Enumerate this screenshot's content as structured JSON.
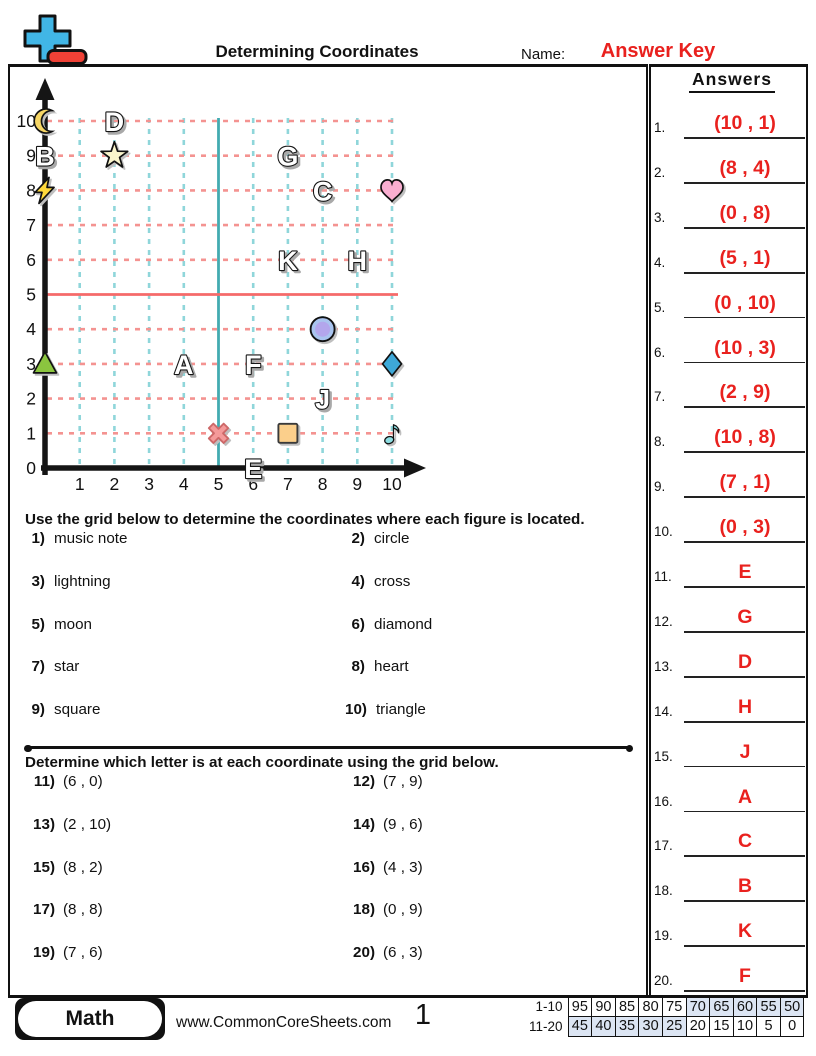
{
  "header": {
    "title": "Determining Coordinates",
    "name_label": "Name:",
    "answer_key": "Answer Key"
  },
  "answers_panel": {
    "heading": "Answers",
    "items": [
      {
        "num": "1.",
        "text": "(10 , 1)"
      },
      {
        "num": "2.",
        "text": "(8 , 4)"
      },
      {
        "num": "3.",
        "text": "(0 , 8)"
      },
      {
        "num": "4.",
        "text": "(5 , 1)"
      },
      {
        "num": "5.",
        "text": "(0 , 10)"
      },
      {
        "num": "6.",
        "text": "(10 , 3)"
      },
      {
        "num": "7.",
        "text": "(2 , 9)"
      },
      {
        "num": "8.",
        "text": "(10 , 8)"
      },
      {
        "num": "9.",
        "text": "(7 , 1)"
      },
      {
        "num": "10.",
        "text": "(0 , 3)"
      },
      {
        "num": "11.",
        "text": "E"
      },
      {
        "num": "12.",
        "text": "G"
      },
      {
        "num": "13.",
        "text": "D"
      },
      {
        "num": "14.",
        "text": "H"
      },
      {
        "num": "15.",
        "text": "J"
      },
      {
        "num": "16.",
        "text": "A"
      },
      {
        "num": "17.",
        "text": "C"
      },
      {
        "num": "18.",
        "text": "B"
      },
      {
        "num": "19.",
        "text": "K"
      },
      {
        "num": "20.",
        "text": "F"
      }
    ]
  },
  "chart_data": {
    "type": "scatter",
    "title": "coordinate grid 0-10 by 0-10",
    "xlim": [
      0,
      10.6
    ],
    "ylim": [
      0,
      10.6
    ],
    "x_ticks": [
      "1",
      "2",
      "3",
      "4",
      "5",
      "6",
      "7",
      "8",
      "9",
      "10"
    ],
    "y_ticks": [
      "0",
      "1",
      "2",
      "3",
      "4",
      "5",
      "6",
      "7",
      "8",
      "9",
      "10"
    ],
    "grid": {
      "v_dashed_color": "#8fd6da",
      "v_solid_at": 5,
      "v_solid_color": "#43abb1",
      "h_dashed_color": "#f49391",
      "h_solid_at": 5,
      "h_solid_color": "#f56a6a"
    },
    "shapes": [
      {
        "name": "moon",
        "x": 0,
        "y": 10,
        "color": "#f6d665"
      },
      {
        "name": "star",
        "x": 2,
        "y": 9,
        "color": "#faf5cc"
      },
      {
        "name": "lightning",
        "x": 0,
        "y": 8,
        "color": "#ffd93b"
      },
      {
        "name": "heart",
        "x": 10,
        "y": 8,
        "color": "#f9aed0"
      },
      {
        "name": "circle",
        "x": 8,
        "y": 4,
        "color": "#a9c4ef",
        "color2": "#b3a6ec"
      },
      {
        "name": "triangle",
        "x": 0,
        "y": 3,
        "color": "#8bc53f"
      },
      {
        "name": "diamond",
        "x": 10,
        "y": 3,
        "color": "#3ea8d8"
      },
      {
        "name": "cross",
        "x": 5,
        "y": 1,
        "color": "#f59a9a"
      },
      {
        "name": "square",
        "x": 7,
        "y": 1,
        "color": "#fbcf8b"
      },
      {
        "name": "music-note",
        "x": 10,
        "y": 1,
        "color": "#8edee2"
      }
    ],
    "letters": [
      {
        "label": "D",
        "x": 2,
        "y": 10
      },
      {
        "label": "B",
        "x": 0,
        "y": 9
      },
      {
        "label": "G",
        "x": 7,
        "y": 9
      },
      {
        "label": "C",
        "x": 8,
        "y": 8
      },
      {
        "label": "K",
        "x": 7,
        "y": 6
      },
      {
        "label": "H",
        "x": 9,
        "y": 6
      },
      {
        "label": "A",
        "x": 4,
        "y": 3
      },
      {
        "label": "F",
        "x": 6,
        "y": 3
      },
      {
        "label": "J",
        "x": 8,
        "y": 2
      },
      {
        "label": "E",
        "x": 6,
        "y": 0
      }
    ]
  },
  "section1": {
    "instruction": "Use the grid below to determine the coordinates where each figure is located.",
    "items": [
      {
        "num": "1)",
        "text": "music note"
      },
      {
        "num": "2)",
        "text": "circle"
      },
      {
        "num": "3)",
        "text": "lightning"
      },
      {
        "num": "4)",
        "text": "cross"
      },
      {
        "num": "5)",
        "text": "moon"
      },
      {
        "num": "6)",
        "text": "diamond"
      },
      {
        "num": "7)",
        "text": "star"
      },
      {
        "num": "8)",
        "text": "heart"
      },
      {
        "num": "9)",
        "text": "square"
      },
      {
        "num": "10)",
        "text": "triangle"
      }
    ]
  },
  "section2": {
    "instruction": "Determine which letter is at each coordinate using the grid below.",
    "items": [
      {
        "num": "11)",
        "text": "(6 , 0)"
      },
      {
        "num": "12)",
        "text": "(7 , 9)"
      },
      {
        "num": "13)",
        "text": "(2 , 10)"
      },
      {
        "num": "14)",
        "text": "(9 , 6)"
      },
      {
        "num": "15)",
        "text": "(8 , 2)"
      },
      {
        "num": "16)",
        "text": "(4 , 3)"
      },
      {
        "num": "17)",
        "text": "(8 , 8)"
      },
      {
        "num": "18)",
        "text": "(0 , 9)"
      },
      {
        "num": "19)",
        "text": "(7 , 6)"
      },
      {
        "num": "20)",
        "text": "(6 , 3)"
      }
    ]
  },
  "footer": {
    "subject": "Math",
    "website": "www.CommonCoreSheets.com",
    "page": "1",
    "score": {
      "rows": [
        {
          "label": "1-10",
          "cells": [
            "95",
            "90",
            "85",
            "80",
            "75",
            "70",
            "65",
            "60",
            "55",
            "50"
          ],
          "shaded": [
            0,
            0,
            0,
            0,
            0,
            1,
            1,
            1,
            1,
            1
          ]
        },
        {
          "label": "11-20",
          "cells": [
            "45",
            "40",
            "35",
            "30",
            "25",
            "20",
            "15",
            "10",
            "5",
            "0"
          ],
          "shaded": [
            1,
            1,
            1,
            1,
            1,
            0,
            0,
            0,
            0,
            0
          ]
        }
      ]
    }
  },
  "colors": {
    "answer_red": "#e9211e",
    "shade_blue": "#dce5f3",
    "logo_blue": "#41b6e6",
    "logo_red": "#ef4136"
  }
}
